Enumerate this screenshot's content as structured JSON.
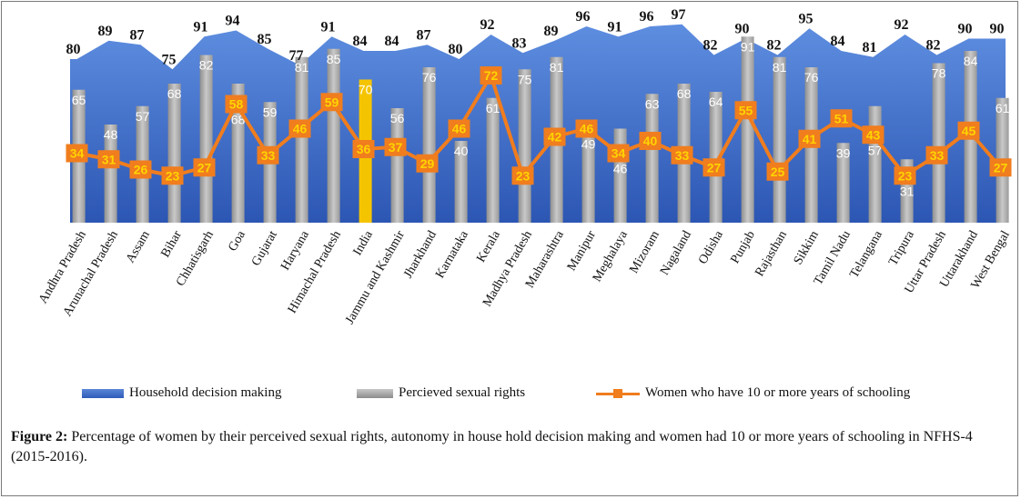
{
  "chart_data": {
    "type": "bar",
    "categories": [
      "Andhra Pradesh",
      "Arunachal Pradesh",
      "Assam",
      "Bihar",
      "Chhatisgarh",
      "Goa",
      "Gujarat",
      "Haryana",
      "Himachal Pradesh",
      "India",
      "Jammu and Kashmir",
      "Jharkhand",
      "Karnataka",
      "Kerala",
      "Madhya Pradesh",
      "Maharashtra",
      "Manipur",
      "Meghalaya",
      "Mizoram",
      "Nagaland",
      "Odisha",
      "Punjab",
      "Rajasthan",
      "Sikkim",
      "Tamil Nadu",
      "Telangana",
      "Tripura",
      "Uttar Pradesh",
      "Uttarakhand",
      "West Bengal"
    ],
    "series": [
      {
        "name": "Household decision making",
        "chart": "area",
        "color": "#3f6fc9",
        "values": [
          80,
          89,
          87,
          75,
          91,
          94,
          85,
          77,
          91,
          84,
          84,
          87,
          80,
          92,
          83,
          89,
          96,
          91,
          96,
          97,
          82,
          90,
          82,
          95,
          84,
          81,
          92,
          82,
          90,
          90
        ]
      },
      {
        "name": "Percieved sexual rights",
        "chart": "bar",
        "color": "#a6a6a6",
        "highlight": {
          "category": "India",
          "color": "#f5c400",
          "label_color": "#c00000"
        },
        "values": [
          65,
          48,
          57,
          68,
          82,
          68,
          59,
          81,
          85,
          70,
          56,
          76,
          40,
          61,
          75,
          81,
          49,
          46,
          63,
          68,
          64,
          91,
          81,
          76,
          39,
          57,
          31,
          78,
          84,
          61
        ]
      },
      {
        "name": "Women who have 10 or more years of schooling",
        "chart": "line",
        "color": "#f07d1e",
        "label_color": "#ffd400",
        "values": [
          34,
          31,
          26,
          23,
          27,
          58,
          33,
          46,
          59,
          36,
          37,
          29,
          46,
          72,
          23,
          42,
          46,
          34,
          40,
          33,
          27,
          55,
          25,
          41,
          51,
          43,
          23,
          33,
          45,
          27
        ]
      }
    ],
    "ylim": [
      0,
      100
    ],
    "grid": false,
    "legend": "bottom"
  },
  "legend": {
    "household": "Household decision making",
    "sexual": "Percieved sexual rights",
    "schooling": "Women who have 10 or more years of schooling"
  },
  "caption": {
    "label": "Figure 2:",
    "text": " Percentage of women by their perceived sexual rights, autonomy in house hold decision making and women had 10 or more years of schooling in NFHS-4 (2015-2016)."
  }
}
